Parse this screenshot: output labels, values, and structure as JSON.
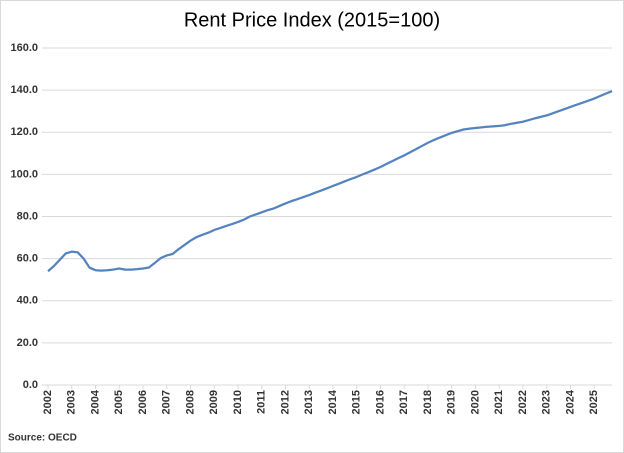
{
  "chart_data": {
    "type": "line",
    "title": "Rent Price Index (2015=100)",
    "source": "Source: OECD",
    "x": [
      2002,
      2002.25,
      2002.5,
      2002.75,
      2003,
      2003.25,
      2003.5,
      2003.75,
      2004,
      2004.25,
      2004.5,
      2004.75,
      2005,
      2005.25,
      2005.5,
      2005.75,
      2006,
      2006.25,
      2006.5,
      2006.75,
      2007,
      2007.25,
      2007.5,
      2007.75,
      2008,
      2008.25,
      2008.5,
      2008.75,
      2009,
      2009.25,
      2009.5,
      2009.75,
      2010,
      2010.25,
      2010.5,
      2010.75,
      2011,
      2011.25,
      2011.5,
      2011.75,
      2012,
      2012.25,
      2012.5,
      2012.75,
      2013,
      2013.25,
      2013.5,
      2013.75,
      2014,
      2014.25,
      2014.5,
      2014.75,
      2015,
      2015.25,
      2015.5,
      2015.75,
      2016,
      2016.25,
      2016.5,
      2016.75,
      2017,
      2017.25,
      2017.5,
      2017.75,
      2018,
      2018.25,
      2018.5,
      2018.75,
      2019,
      2019.25,
      2019.5,
      2019.75,
      2020,
      2020.25,
      2020.5,
      2020.75,
      2021,
      2021.25,
      2021.5,
      2021.75,
      2022,
      2022.25,
      2022.5,
      2022.75,
      2023,
      2023.25,
      2023.5,
      2023.75,
      2024,
      2024.25,
      2024.5,
      2024.75,
      2025,
      2025.25,
      2025.5,
      2025.75
    ],
    "series": [
      {
        "name": "Rent Price Index",
        "color": "#5583bf",
        "values": [
          54,
          56.5,
          59.5,
          62.5,
          63.3,
          63,
          60,
          55.7,
          54.5,
          54.3,
          54.5,
          54.8,
          55.3,
          54.8,
          54.8,
          55,
          55.3,
          55.8,
          58,
          60.3,
          61.5,
          62.2,
          64.5,
          66.5,
          68.5,
          70.2,
          71.3,
          72.3,
          73.6,
          74.5,
          75.5,
          76.4,
          77.4,
          78.5,
          80,
          81,
          82,
          83,
          83.8,
          85,
          86.2,
          87.3,
          88.2,
          89.2,
          90.2,
          91.3,
          92.3,
          93.4,
          94.5,
          95.6,
          96.7,
          97.8,
          98.8,
          100,
          101.1,
          102.3,
          103.5,
          104.9,
          106.3,
          107.7,
          109,
          110.5,
          112,
          113.5,
          115,
          116.3,
          117.5,
          118.6,
          119.7,
          120.5,
          121.3,
          121.7,
          122,
          122.3,
          122.6,
          122.8,
          123,
          123.4,
          124,
          124.5,
          125,
          125.8,
          126.6,
          127.3,
          128,
          129,
          130,
          131,
          132,
          133,
          134,
          135,
          136,
          137.2,
          138.4,
          139.5
        ]
      }
    ],
    "xlim": [
      2002,
      2025.75
    ],
    "xticks": [
      2002,
      2003,
      2004,
      2005,
      2006,
      2007,
      2008,
      2009,
      2010,
      2011,
      2012,
      2013,
      2014,
      2015,
      2016,
      2017,
      2018,
      2019,
      2020,
      2021,
      2022,
      2023,
      2024,
      2025
    ],
    "ylim": [
      0,
      160
    ],
    "yticks": [
      {
        "value": 0,
        "label": "0.0"
      },
      {
        "value": 20,
        "label": "20.0"
      },
      {
        "value": 40,
        "label": "40.0"
      },
      {
        "value": 60,
        "label": "60.0"
      },
      {
        "value": 80,
        "label": "80.0"
      },
      {
        "value": 100,
        "label": "100.0"
      },
      {
        "value": 120,
        "label": "120.0"
      },
      {
        "value": 140,
        "label": "140.0"
      },
      {
        "value": 160,
        "label": "160.0"
      }
    ],
    "grid": true
  }
}
